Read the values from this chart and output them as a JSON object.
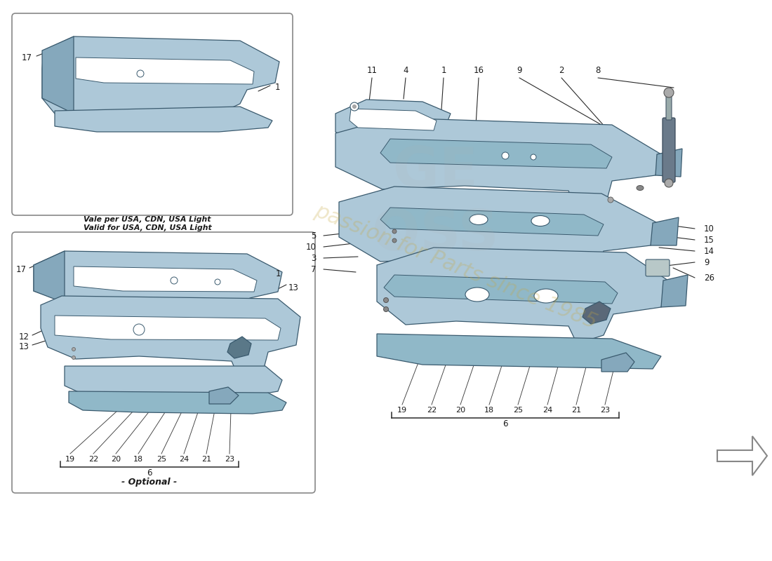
{
  "bg_color": "#ffffff",
  "part_color_main": "#adc8d8",
  "part_color_dark": "#85a8bc",
  "part_color_light": "#c8dce8",
  "part_edge": "#3a5a6e",
  "line_color": "#2a2a2a",
  "text_color": "#1a1a1a",
  "label_text_1": "Vale per USA, CDN, USA Light",
  "label_text_2": "Valid for USA, CDN, USA Light",
  "label_optional": "- Optional -",
  "top_nums": [
    "11",
    "4",
    "1",
    "16",
    "9",
    "2",
    "8"
  ],
  "right_nums": [
    "10",
    "15",
    "14",
    "9",
    "26"
  ],
  "left_nums_mid": [
    "5",
    "10",
    "3",
    "7"
  ],
  "bottom_nums": [
    "19",
    "22",
    "20",
    "18",
    "25",
    "24",
    "21",
    "23"
  ],
  "bracket_num": "6",
  "watermark_text": "passion for Parts since 1985"
}
